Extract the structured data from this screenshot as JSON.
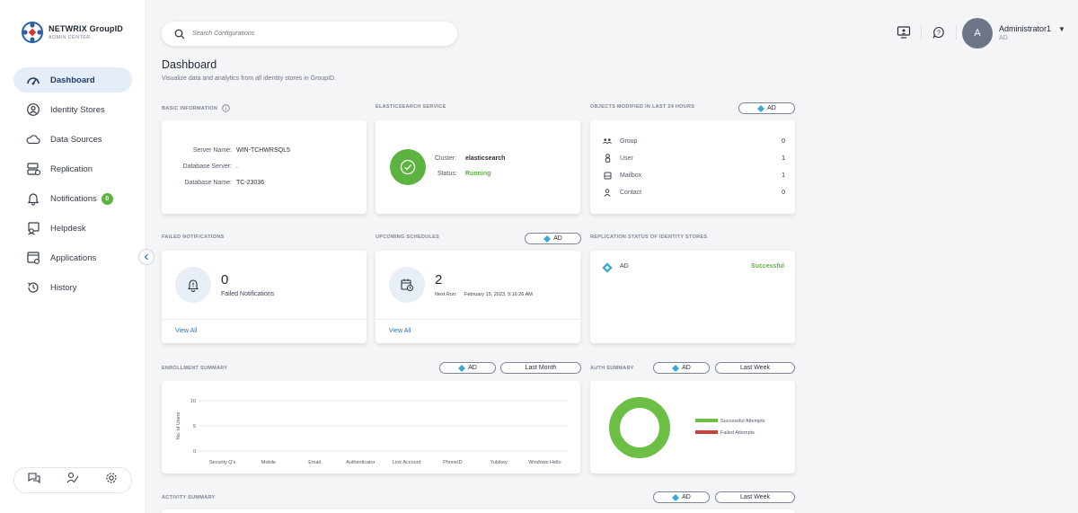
{
  "brand": {
    "name": "NETWRIX GroupID",
    "subtitle": "ADMIN CENTER"
  },
  "sidebar": {
    "items": [
      {
        "label": "Dashboard",
        "icon": "dashboard-icon",
        "active": true
      },
      {
        "label": "Identity Stores",
        "icon": "identity-store-icon"
      },
      {
        "label": "Data Sources",
        "icon": "cloud-icon"
      },
      {
        "label": "Replication",
        "icon": "replication-icon"
      },
      {
        "label": "Notifications",
        "icon": "bell-icon",
        "badge": "0"
      },
      {
        "label": "Helpdesk",
        "icon": "helpdesk-icon"
      },
      {
        "label": "Applications",
        "icon": "applications-icon"
      },
      {
        "label": "History",
        "icon": "history-icon"
      }
    ]
  },
  "search": {
    "placeholder": "Search Configurations"
  },
  "user": {
    "initial": "A",
    "name": "Administrator1",
    "role": "AD"
  },
  "page": {
    "title": "Dashboard",
    "subtitle": "Visualize data and analytics from all identity stores in GroupID."
  },
  "basic_info": {
    "label": "BASIC INFORMATION",
    "rows": [
      {
        "key": "Server Name:",
        "value": "WIN-TCHWRSQL5"
      },
      {
        "key": "Database Server:",
        "value": "."
      },
      {
        "key": "Database Name:",
        "value": "TC-23036"
      }
    ]
  },
  "elastic": {
    "label": "ELASTICSEARCH SERVICE",
    "cluster_key": "Cluster:",
    "cluster_value": "elasticsearch",
    "status_key": "Status:",
    "status_value": "Running",
    "status_color": "#5cb33f"
  },
  "objects_modified": {
    "label": "OBJECTS MODIFIED IN LAST 24 HOURS",
    "filter": "AD",
    "rows": [
      {
        "label": "Group",
        "count": "0",
        "icon": "group-icon"
      },
      {
        "label": "User",
        "count": "1",
        "icon": "user-icon"
      },
      {
        "label": "Mailbox",
        "count": "1",
        "icon": "mailbox-icon"
      },
      {
        "label": "Contact",
        "count": "0",
        "icon": "contact-icon"
      }
    ]
  },
  "failed_notifications": {
    "label": "FAILED NOTIFICATIONS",
    "count": "0",
    "text": "Failed Notifications",
    "link": "View All"
  },
  "upcoming_schedules": {
    "label": "UPCOMING SCHEDULES",
    "filter": "AD",
    "count": "2",
    "next_run_label": "Next Run:",
    "next_run_value": "February 15, 2023, 9:16:26 AM",
    "link": "View All"
  },
  "replication_status": {
    "label": "REPLICATION STATUS OF IDENTITY STORES",
    "store": "AD",
    "status": "Successful",
    "status_color": "#5cb33f"
  },
  "enrollment": {
    "label": "ENROLLMENT SUMMARY",
    "filter": "AD",
    "period": "Last Month",
    "chart_data": {
      "type": "bar",
      "categories": [
        "Security Q's",
        "Mobile",
        "Email",
        "Authenticator",
        "Link Account",
        "PhoneID",
        "Yubikey",
        "Windows Hello"
      ],
      "values": [
        0,
        0,
        0,
        0,
        0,
        0,
        0,
        0
      ],
      "ylabel": "No. of Users",
      "yticks": [
        "10",
        "5",
        "0"
      ],
      "ylim": [
        0,
        10
      ],
      "grid": true
    }
  },
  "auth_summary": {
    "label": "AUTH SUMMARY",
    "filter": "AD",
    "period": "Last Week",
    "chart_data": {
      "type": "pie",
      "categories": [
        "Successful Attempts",
        "Failed Attempts"
      ],
      "values": [
        100,
        0
      ],
      "colors": [
        "#6dbe45",
        "#c8413f"
      ],
      "legend": "right"
    }
  },
  "activity_summary": {
    "label": "ACTIVITY SUMMARY",
    "filter": "AD",
    "period": "Last Week"
  },
  "colors": {
    "accent": "#2f6fb3",
    "success": "#5cb33f",
    "active_nav": "#e5eef8"
  }
}
